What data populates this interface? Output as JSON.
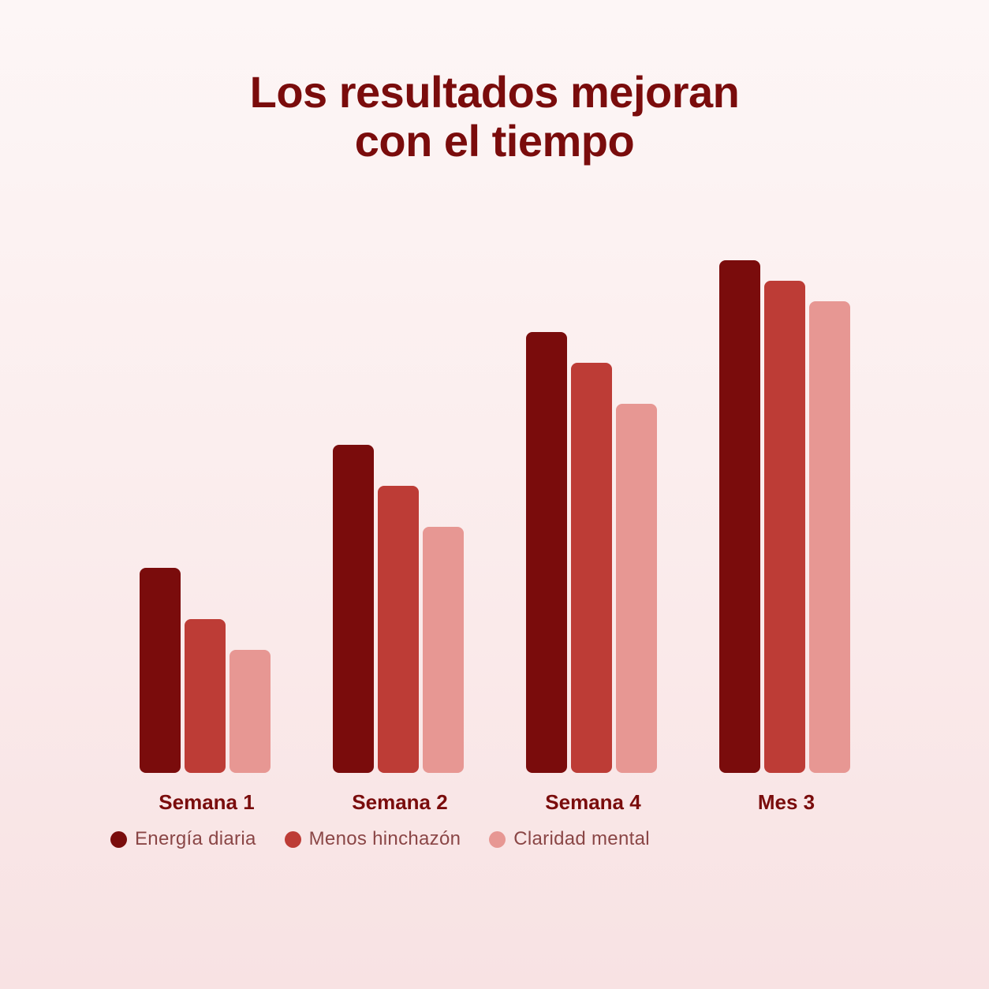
{
  "chart_data": {
    "type": "bar",
    "title_lines": [
      "Los resultados mejoran",
      "con el tiempo"
    ],
    "categories": [
      "Semana 1",
      "Semana 2",
      "Semana 4",
      "Mes 3"
    ],
    "series": [
      {
        "name": "Energía diaria",
        "color": "#7a0c0c",
        "values": [
          40,
          64,
          86,
          100
        ]
      },
      {
        "name": "Menos hinchazón",
        "color": "#bd3c36",
        "values": [
          30,
          56,
          80,
          96
        ]
      },
      {
        "name": "Claridad mental",
        "color": "#e79793",
        "values": [
          24,
          48,
          72,
          92
        ]
      }
    ],
    "ylim": [
      0,
      100
    ],
    "grid": false,
    "legend_position": "bottom-left"
  }
}
